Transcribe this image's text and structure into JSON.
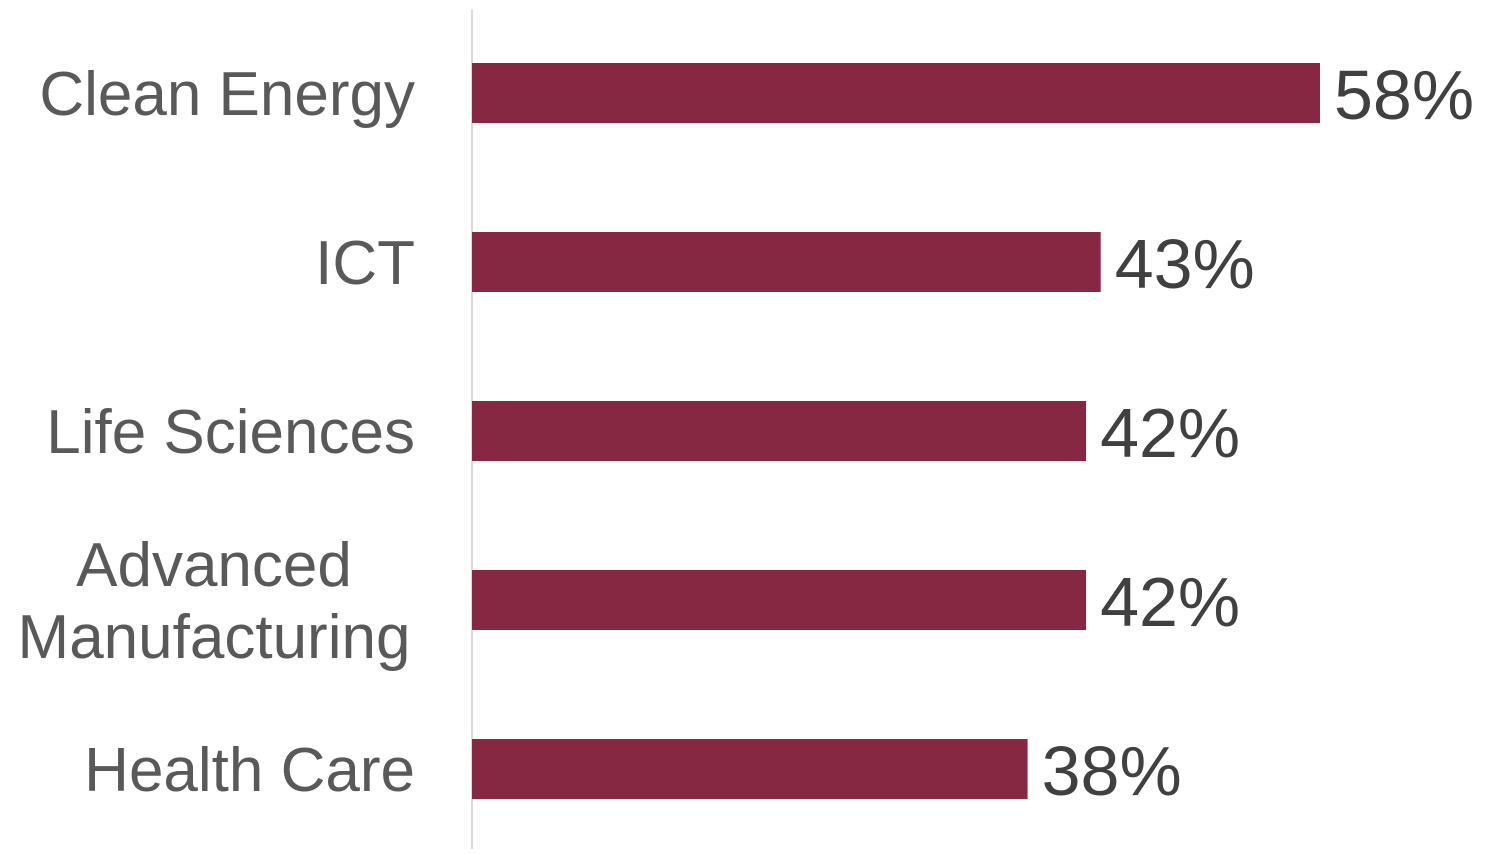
{
  "chart_data": {
    "type": "bar",
    "orientation": "horizontal",
    "categories": [
      [
        "Clean Energy"
      ],
      [
        "ICT"
      ],
      [
        "Life Sciences"
      ],
      [
        "Advanced",
        "Manufacturing"
      ],
      [
        "Health Care"
      ]
    ],
    "values": [
      58,
      43,
      42,
      42,
      38
    ],
    "value_labels": [
      "58%",
      "43%",
      "42%",
      "42%",
      "38%"
    ],
    "unit": "%",
    "title": "",
    "xlabel": "",
    "ylabel": "",
    "xlim": [
      0,
      100
    ],
    "grid": false,
    "legend": "none",
    "colors": {
      "bar": "#862842",
      "axis": "#d9d9d9",
      "category_text": "#595959",
      "value_text": "#404040"
    }
  }
}
